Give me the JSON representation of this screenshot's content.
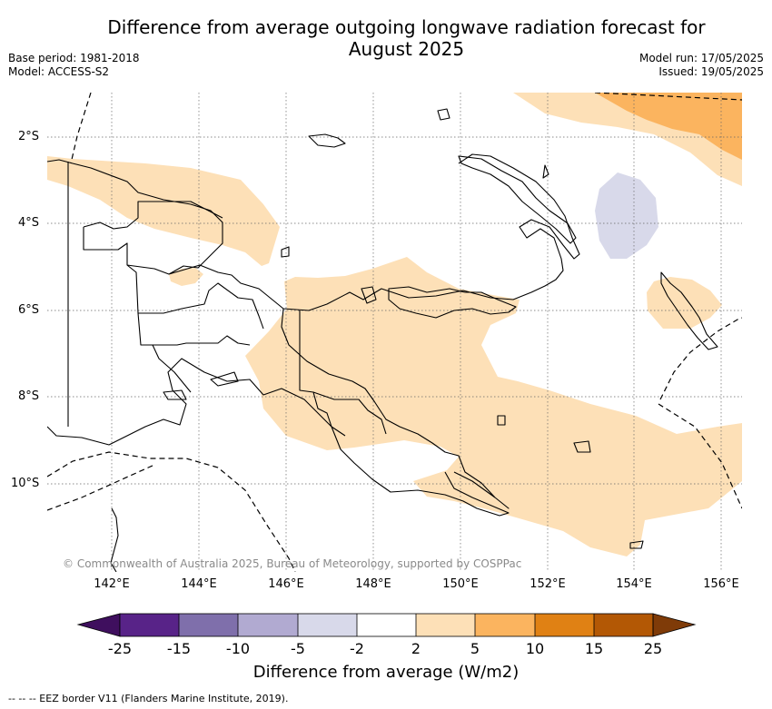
{
  "title": {
    "line1": "Difference from average outgoing longwave radiation forecast for",
    "line2": "August 2025"
  },
  "meta_left": {
    "base_period": "Base period: 1981-2018",
    "model": "Model: ACCESS-S2"
  },
  "meta_right": {
    "model_run": "Model run: 17/05/2025",
    "issued": "Issued: 19/05/2025"
  },
  "map": {
    "lat_labels": [
      "2°S",
      "4°S",
      "6°S",
      "8°S",
      "10°S"
    ],
    "lon_labels": [
      "142°E",
      "144°E",
      "146°E",
      "148°E",
      "150°E",
      "152°E",
      "154°E",
      "156°E"
    ],
    "copyright": "© Commonwealth of Australia 2025, Bureau of Meteorology, supported by COSPPac",
    "anomaly_fills": {
      "2_to_5": "#fde0b7",
      "5_to_10": "#fbb45f",
      "-5_to_-2": "#d8d9ea"
    },
    "grid": "dotted",
    "eez_border": "dashed"
  },
  "colorbar": {
    "ticks": [
      "-25",
      "-15",
      "-10",
      "-5",
      "-2",
      "2",
      "5",
      "10",
      "15",
      "25"
    ],
    "colors": [
      "#3f0f5e",
      "#582388",
      "#7f6fab",
      "#b1aad1",
      "#d8d9ea",
      "#ffffff",
      "#fde0b7",
      "#fbb45f",
      "#e08114",
      "#b35805",
      "#7f3b08"
    ],
    "label": "Difference from average (W/m2)"
  },
  "eez_legend": "--  --  -- EEZ border V11 (Flanders Marine Institute, 2019)."
}
